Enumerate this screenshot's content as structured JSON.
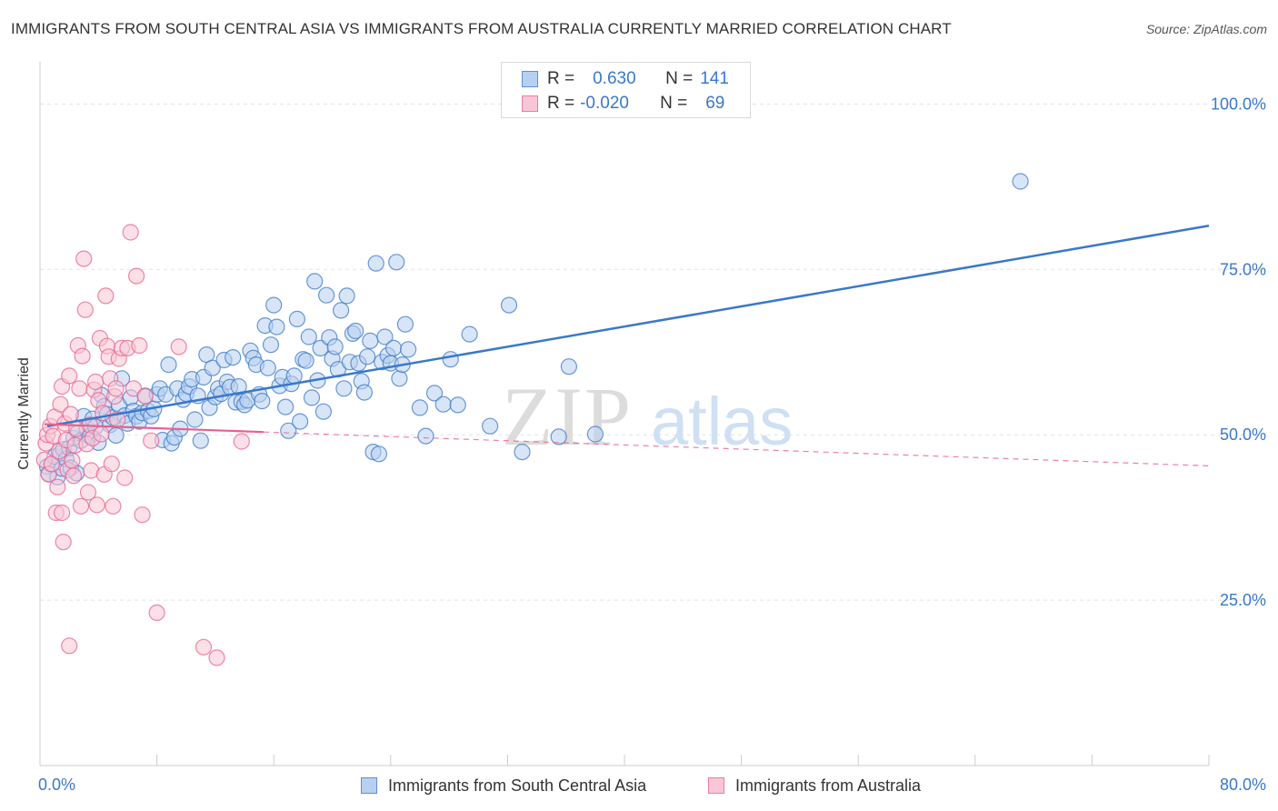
{
  "header": {
    "title": "IMMIGRANTS FROM SOUTH CENTRAL ASIA VS IMMIGRANTS FROM AUSTRALIA CURRENTLY MARRIED CORRELATION CHART",
    "source": "Source: ZipAtlas.com"
  },
  "watermark": {
    "part1": "ZIP",
    "part2": "atlas"
  },
  "legend": {
    "r_label": "R =",
    "n_label": "N =",
    "rows": [
      {
        "r": "0.630",
        "n": "141",
        "color": "#5b8fd8",
        "fill": "#b8d0f0"
      },
      {
        "r": "-0.020",
        "n": "69",
        "color": "#e87fa3",
        "fill": "#f8c6d6"
      }
    ]
  },
  "chart_data": {
    "type": "scatter",
    "title": "IMMIGRANTS FROM SOUTH CENTRAL ASIA VS IMMIGRANTS FROM AUSTRALIA CURRENTLY MARRIED CORRELATION CHART",
    "xlabel": "",
    "ylabel": "Currently Married",
    "xlim": [
      0,
      80
    ],
    "ylim": [
      0,
      105
    ],
    "x_tick_labels": [
      "0.0%",
      "80.0%"
    ],
    "y_ticks": [
      25,
      50,
      75,
      100
    ],
    "y_tick_labels": [
      "25.0%",
      "50.0%",
      "75.0%",
      "100.0%"
    ],
    "grid": true,
    "series": [
      {
        "name": "Immigrants from South Central Asia",
        "color": "#3a78c9",
        "fill": "#b8d0f0",
        "trend": {
          "x0": 0.5,
          "y0": 51.3,
          "x1": 80,
          "y1": 81.6,
          "dashed_from": null
        },
        "points": [
          [
            0.5,
            45.2
          ],
          [
            0.6,
            44.1
          ],
          [
            0.8,
            45.5
          ],
          [
            1.0,
            46.7
          ],
          [
            1.2,
            43.6
          ],
          [
            1.4,
            47.2
          ],
          [
            1.5,
            44.9
          ],
          [
            1.6,
            47.8
          ],
          [
            1.8,
            46.3
          ],
          [
            2.0,
            48.0
          ],
          [
            2.1,
            45.0
          ],
          [
            2.3,
            49.5
          ],
          [
            2.5,
            44.2
          ],
          [
            2.6,
            50.3
          ],
          [
            2.8,
            49.1
          ],
          [
            3.0,
            52.8
          ],
          [
            3.2,
            51.0
          ],
          [
            3.4,
            49.8
          ],
          [
            3.6,
            52.4
          ],
          [
            3.8,
            51.2
          ],
          [
            4.0,
            48.8
          ],
          [
            4.2,
            56.0
          ],
          [
            4.4,
            54.3
          ],
          [
            4.6,
            53.1
          ],
          [
            4.8,
            51.5
          ],
          [
            5.0,
            52.6
          ],
          [
            5.2,
            49.9
          ],
          [
            5.4,
            54.5
          ],
          [
            5.6,
            58.5
          ],
          [
            5.8,
            52.9
          ],
          [
            6.0,
            51.7
          ],
          [
            6.2,
            55.6
          ],
          [
            6.4,
            53.6
          ],
          [
            6.6,
            52.8
          ],
          [
            6.8,
            52.0
          ],
          [
            7.0,
            53.3
          ],
          [
            7.2,
            55.9
          ],
          [
            7.4,
            53.6
          ],
          [
            7.6,
            52.8
          ],
          [
            7.8,
            53.9
          ],
          [
            8.0,
            56.1
          ],
          [
            8.2,
            57.0
          ],
          [
            8.4,
            49.2
          ],
          [
            8.6,
            56.1
          ],
          [
            8.8,
            60.6
          ],
          [
            9.0,
            48.7
          ],
          [
            9.2,
            49.6
          ],
          [
            9.4,
            57.0
          ],
          [
            9.6,
            50.9
          ],
          [
            9.8,
            55.3
          ],
          [
            10.0,
            56.2
          ],
          [
            10.2,
            57.3
          ],
          [
            10.4,
            58.4
          ],
          [
            10.6,
            52.3
          ],
          [
            10.8,
            55.9
          ],
          [
            11.0,
            49.1
          ],
          [
            11.2,
            58.7
          ],
          [
            11.4,
            62.1
          ],
          [
            11.6,
            54.1
          ],
          [
            11.8,
            60.1
          ],
          [
            12.0,
            55.7
          ],
          [
            12.2,
            57.0
          ],
          [
            12.4,
            56.2
          ],
          [
            12.6,
            61.3
          ],
          [
            12.8,
            58.0
          ],
          [
            13.0,
            57.2
          ],
          [
            13.2,
            61.7
          ],
          [
            13.4,
            54.9
          ],
          [
            13.6,
            57.3
          ],
          [
            13.8,
            55.0
          ],
          [
            14.0,
            54.5
          ],
          [
            14.2,
            55.2
          ],
          [
            14.4,
            62.7
          ],
          [
            14.6,
            61.6
          ],
          [
            14.8,
            60.6
          ],
          [
            15.0,
            56.1
          ],
          [
            15.2,
            55.1
          ],
          [
            15.4,
            66.5
          ],
          [
            15.6,
            60.1
          ],
          [
            15.8,
            63.6
          ],
          [
            16.0,
            69.6
          ],
          [
            16.2,
            66.3
          ],
          [
            16.4,
            57.4
          ],
          [
            16.6,
            58.7
          ],
          [
            16.8,
            54.2
          ],
          [
            17.0,
            50.6
          ],
          [
            17.2,
            57.7
          ],
          [
            17.4,
            58.9
          ],
          [
            17.6,
            67.5
          ],
          [
            17.8,
            52.0
          ],
          [
            18.0,
            61.4
          ],
          [
            18.2,
            61.2
          ],
          [
            18.4,
            64.8
          ],
          [
            18.6,
            55.6
          ],
          [
            18.8,
            73.2
          ],
          [
            19.0,
            58.2
          ],
          [
            19.2,
            63.1
          ],
          [
            19.4,
            53.5
          ],
          [
            19.6,
            71.1
          ],
          [
            19.8,
            64.7
          ],
          [
            20.0,
            61.5
          ],
          [
            20.2,
            63.3
          ],
          [
            20.4,
            59.9
          ],
          [
            20.6,
            68.8
          ],
          [
            20.8,
            57.0
          ],
          [
            21.0,
            71.0
          ],
          [
            21.2,
            61.0
          ],
          [
            21.4,
            65.3
          ],
          [
            21.6,
            65.7
          ],
          [
            21.8,
            60.8
          ],
          [
            22.0,
            58.1
          ],
          [
            22.2,
            56.4
          ],
          [
            22.4,
            61.8
          ],
          [
            22.6,
            64.2
          ],
          [
            22.8,
            47.4
          ],
          [
            23.0,
            75.9
          ],
          [
            23.2,
            47.1
          ],
          [
            23.4,
            61.0
          ],
          [
            23.6,
            64.8
          ],
          [
            23.8,
            62.0
          ],
          [
            24.0,
            60.8
          ],
          [
            24.2,
            63.1
          ],
          [
            24.4,
            76.1
          ],
          [
            24.6,
            58.5
          ],
          [
            24.8,
            60.6
          ],
          [
            25.0,
            66.7
          ],
          [
            25.2,
            62.9
          ],
          [
            26.0,
            54.1
          ],
          [
            26.4,
            49.8
          ],
          [
            27.0,
            56.3
          ],
          [
            27.6,
            54.6
          ],
          [
            28.1,
            61.4
          ],
          [
            28.6,
            54.5
          ],
          [
            29.4,
            65.2
          ],
          [
            30.8,
            51.3
          ],
          [
            32.1,
            69.6
          ],
          [
            33.0,
            47.4
          ],
          [
            35.5,
            49.7
          ],
          [
            36.2,
            60.3
          ],
          [
            38.0,
            50.1
          ],
          [
            67.1,
            88.3
          ]
        ]
      },
      {
        "name": "Immigrants from Australia",
        "color": "#e8608d",
        "fill": "#f8c6d6",
        "trend": {
          "x0": 0.3,
          "y0": 51.6,
          "x1": 80,
          "y1": 45.3,
          "dashed_from": 15.3
        },
        "points": [
          [
            0.3,
            46.2
          ],
          [
            0.4,
            48.7
          ],
          [
            0.5,
            50.0
          ],
          [
            0.6,
            44.0
          ],
          [
            0.7,
            51.3
          ],
          [
            0.8,
            45.6
          ],
          [
            0.9,
            49.8
          ],
          [
            1.0,
            52.7
          ],
          [
            1.1,
            38.2
          ],
          [
            1.2,
            42.1
          ],
          [
            1.3,
            47.5
          ],
          [
            1.4,
            54.6
          ],
          [
            1.5,
            57.3
          ],
          [
            1.6,
            33.8
          ],
          [
            1.7,
            51.7
          ],
          [
            1.8,
            49.2
          ],
          [
            1.9,
            44.7
          ],
          [
            2.0,
            58.9
          ],
          [
            2.1,
            53.1
          ],
          [
            2.2,
            46.1
          ],
          [
            2.3,
            43.8
          ],
          [
            2.4,
            48.4
          ],
          [
            2.5,
            50.9
          ],
          [
            2.6,
            63.5
          ],
          [
            2.7,
            57.0
          ],
          [
            2.8,
            39.2
          ],
          [
            2.9,
            61.9
          ],
          [
            3.0,
            76.6
          ],
          [
            3.1,
            68.9
          ],
          [
            3.2,
            48.6
          ],
          [
            3.3,
            41.3
          ],
          [
            3.4,
            51.5
          ],
          [
            3.5,
            44.6
          ],
          [
            3.6,
            49.5
          ],
          [
            3.7,
            56.8
          ],
          [
            3.8,
            58.0
          ],
          [
            3.9,
            39.4
          ],
          [
            4.0,
            55.2
          ],
          [
            4.1,
            64.6
          ],
          [
            4.2,
            50.1
          ],
          [
            4.3,
            53.3
          ],
          [
            4.4,
            44.0
          ],
          [
            4.5,
            71.0
          ],
          [
            4.6,
            63.4
          ],
          [
            4.7,
            61.8
          ],
          [
            4.8,
            58.5
          ],
          [
            4.9,
            45.6
          ],
          [
            5.0,
            39.2
          ],
          [
            5.1,
            55.8
          ],
          [
            5.2,
            57.0
          ],
          [
            5.3,
            52.3
          ],
          [
            5.4,
            61.5
          ],
          [
            5.6,
            63.1
          ],
          [
            5.8,
            43.5
          ],
          [
            6.0,
            63.1
          ],
          [
            6.2,
            80.6
          ],
          [
            6.4,
            57.0
          ],
          [
            6.6,
            74.0
          ],
          [
            6.8,
            63.5
          ],
          [
            7.0,
            37.9
          ],
          [
            7.2,
            55.8
          ],
          [
            7.6,
            49.1
          ],
          [
            8.0,
            23.1
          ],
          [
            9.5,
            63.3
          ],
          [
            11.2,
            17.9
          ],
          [
            12.1,
            16.3
          ],
          [
            13.8,
            49.0
          ],
          [
            2.0,
            18.1
          ],
          [
            1.5,
            38.2
          ]
        ]
      }
    ]
  },
  "bottom_legend": {
    "items": [
      {
        "label": "Immigrants from South Central Asia",
        "color": "#5b8fd8",
        "fill": "#b8d0f0"
      },
      {
        "label": "Immigrants from Australia",
        "color": "#e87fa3",
        "fill": "#f8c6d6"
      }
    ]
  }
}
